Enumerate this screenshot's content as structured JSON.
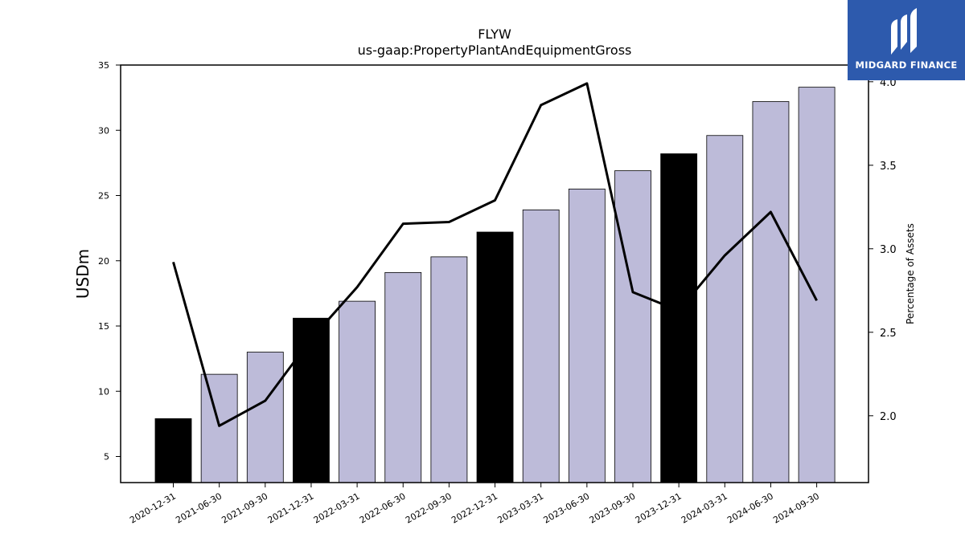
{
  "brand": {
    "name": "MIDGARD FINANCE",
    "logo_icon": "midgard-logo-icon",
    "background": "#2d5aad"
  },
  "chart_data": {
    "type": "bar",
    "title": "FLYW",
    "subtitle": "us-gaap:PropertyPlantAndEquipmentGross",
    "ylabel": "USDm",
    "y2label": "Percentage of Assets",
    "ylim": [
      3,
      35
    ],
    "y2lim": [
      1.6,
      4.1
    ],
    "yticks": [
      5,
      10,
      15,
      20,
      25,
      30,
      35
    ],
    "y2ticks": [
      2.0,
      2.5,
      3.0,
      3.5,
      4.0
    ],
    "categories": [
      "2020-12-31",
      "2021-06-30",
      "2021-09-30",
      "2021-12-31",
      "2022-03-31",
      "2022-06-30",
      "2022-09-30",
      "2022-12-31",
      "2023-03-31",
      "2023-06-30",
      "2023-09-30",
      "2023-12-31",
      "2024-03-31",
      "2024-06-30",
      "2024-09-30"
    ],
    "bars": {
      "values": [
        7.9,
        11.3,
        13.0,
        15.6,
        16.9,
        19.1,
        20.3,
        22.2,
        23.9,
        25.5,
        26.9,
        28.2,
        29.6,
        32.2,
        33.3
      ],
      "colors": [
        "#000000",
        "#bdbbd9",
        "#bdbbd9",
        "#000000",
        "#bdbbd9",
        "#bdbbd9",
        "#bdbbd9",
        "#000000",
        "#bdbbd9",
        "#bdbbd9",
        "#bdbbd9",
        "#000000",
        "#bdbbd9",
        "#bdbbd9",
        "#bdbbd9"
      ]
    },
    "line": {
      "axis": "right",
      "color": "#000000",
      "values": [
        2.92,
        1.94,
        2.09,
        2.46,
        2.77,
        3.15,
        3.16,
        3.29,
        3.86,
        3.99,
        2.74,
        2.63,
        2.96,
        3.22,
        2.69
      ]
    },
    "grid": false,
    "legend": "none"
  }
}
